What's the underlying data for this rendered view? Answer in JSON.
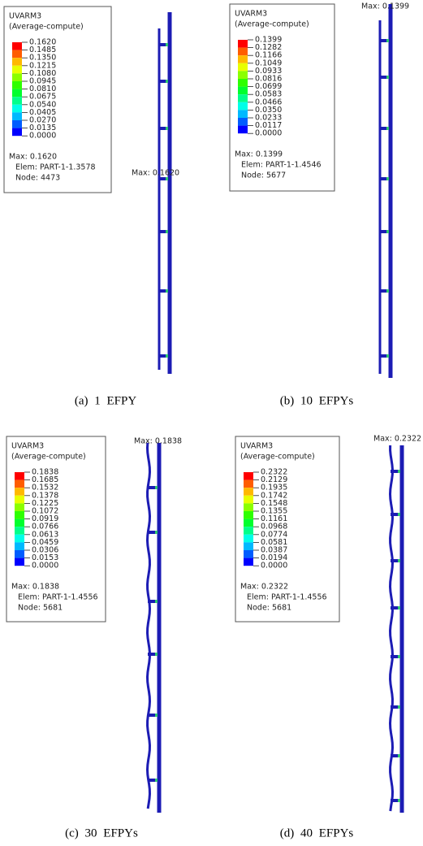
{
  "panels": [
    {
      "legend": {
        "title": "UVARM3",
        "subtitle": "(Average-compute)",
        "values": [
          "0.1620",
          "0.1485",
          "0.1350",
          "0.1215",
          "0.1080",
          "0.0945",
          "0.0810",
          "0.0675",
          "0.0540",
          "0.0405",
          "0.0270",
          "0.0135",
          "0.0000"
        ],
        "max": "Max: 0.1620",
        "elem": "Elem: PART-1-1.3578",
        "node": "Node: 4473"
      },
      "max_label": "Max: 0.1620",
      "caption": "(a) 1 EFPY"
    },
    {
      "legend": {
        "title": "UVARM3",
        "subtitle": "(Average-compute)",
        "values": [
          "0.1399",
          "0.1282",
          "0.1166",
          "0.1049",
          "0.0933",
          "0.0816",
          "0.0699",
          "0.0583",
          "0.0466",
          "0.0350",
          "0.0233",
          "0.0117",
          "0.0000"
        ],
        "max": "Max: 0.1399",
        "elem": "Elem: PART-1-1.4546",
        "node": "Node: 5677"
      },
      "max_label": "Max: 0.1399",
      "caption": "(b) 10 EFPYs"
    },
    {
      "legend": {
        "title": "UVARM3",
        "subtitle": "(Average-compute)",
        "values": [
          "0.1838",
          "0.1685",
          "0.1532",
          "0.1378",
          "0.1225",
          "0.1072",
          "0.0919",
          "0.0766",
          "0.0613",
          "0.0459",
          "0.0306",
          "0.0153",
          "0.0000"
        ],
        "max": "Max: 0.1838",
        "elem": "Elem: PART-1-1.4556",
        "node": "Node: 5681"
      },
      "max_label": "Max: 0.1838",
      "caption": "(c) 30 EFPYs"
    },
    {
      "legend": {
        "title": "UVARM3",
        "subtitle": "(Average-compute)",
        "values": [
          "0.2322",
          "0.2129",
          "0.1935",
          "0.1742",
          "0.1548",
          "0.1355",
          "0.1161",
          "0.0968",
          "0.0774",
          "0.0581",
          "0.0387",
          "0.0194",
          "0.0000"
        ],
        "max": "Max: 0.2322",
        "elem": "Elem: PART-1-1.4556",
        "node": "Node: 5681"
      },
      "max_label": "Max: 0.2322",
      "caption": "(d) 40 EFPYs"
    }
  ]
}
